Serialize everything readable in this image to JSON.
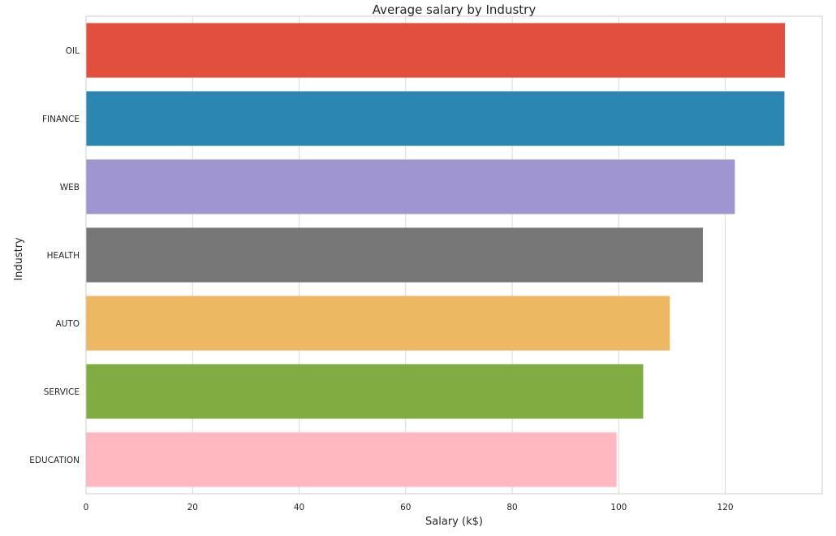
{
  "chart_data": {
    "type": "bar",
    "orientation": "horizontal",
    "title": "Average salary by Industry",
    "xlabel": "Salary (k$)",
    "ylabel": "Industry",
    "categories": [
      "OIL",
      "FINANCE",
      "WEB",
      "HEALTH",
      "AUTO",
      "SERVICE",
      "EDUCATION"
    ],
    "values": [
      131.2,
      131.1,
      121.8,
      115.8,
      109.6,
      104.6,
      99.6
    ],
    "colors": [
      "#e24f3e",
      "#2b87b1",
      "#9f96d1",
      "#777777",
      "#ecb862",
      "#80ad41",
      "#ffb8c0"
    ],
    "xlim": [
      0,
      138.2
    ],
    "xticks": [
      0,
      20,
      40,
      60,
      80,
      100,
      120
    ],
    "xtick_labels": [
      "0",
      "20",
      "40",
      "60",
      "80",
      "100",
      "120"
    ],
    "grid": "vertical",
    "legend": "none"
  }
}
